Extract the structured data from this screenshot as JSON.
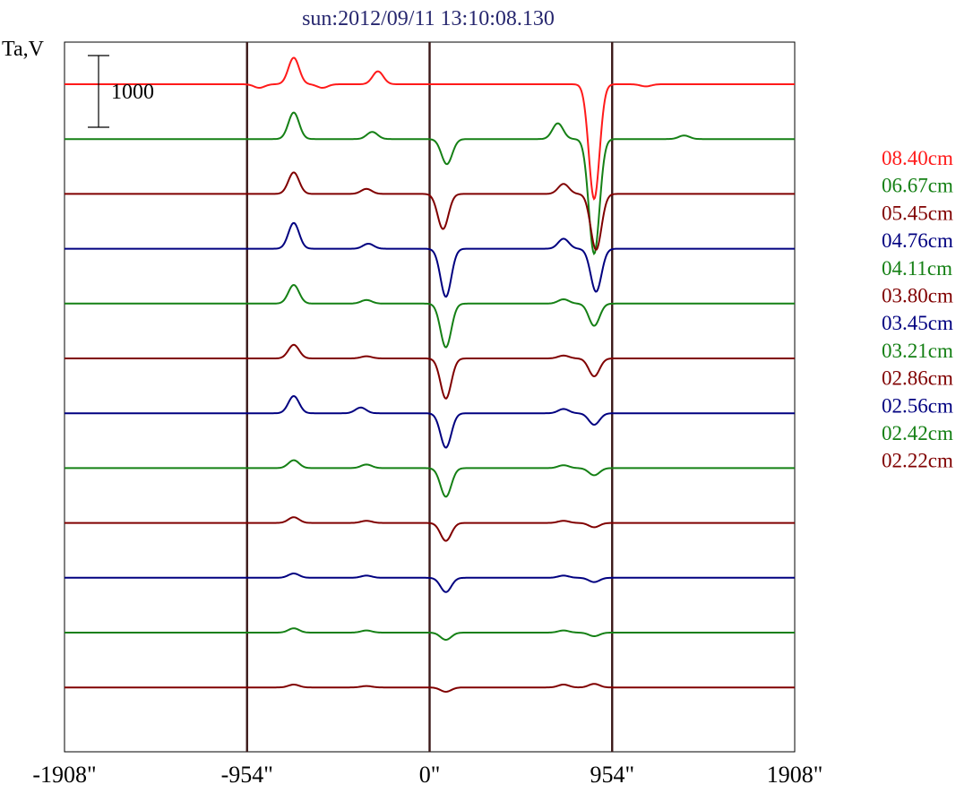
{
  "chart_data": {
    "type": "line",
    "title": "sun:2012/09/11 13:10:08.130",
    "ylabel": "Ta,V",
    "xlim": [
      -1908,
      1908
    ],
    "x_ticks": [
      -1908,
      -954,
      0,
      954,
      1908
    ],
    "x_tick_labels": [
      "-1908\"",
      "-954\"",
      "0\"",
      "954\"",
      "1908\""
    ],
    "vertical_lines": [
      -954,
      0,
      954
    ],
    "scale_bar": {
      "label": "1000",
      "value": 1000
    },
    "legend_placement": "right",
    "grid": false,
    "series": [
      {
        "name": "08.40cm",
        "color": "#ff1a1a",
        "events": [
          [
            -890,
            -50
          ],
          [
            -710,
            370
          ],
          [
            -560,
            -50
          ],
          [
            -270,
            180
          ],
          [
            860,
            -1600
          ],
          [
            1130,
            -30
          ]
        ]
      },
      {
        "name": "06.67cm",
        "color": "#158015",
        "events": [
          [
            -710,
            370
          ],
          [
            -300,
            100
          ],
          [
            90,
            -350
          ],
          [
            670,
            220
          ],
          [
            860,
            -1600
          ],
          [
            1330,
            50
          ]
        ]
      },
      {
        "name": "05.45cm",
        "color": "#800000",
        "events": [
          [
            -710,
            300
          ],
          [
            -330,
            70
          ],
          [
            70,
            -490
          ],
          [
            700,
            140
          ],
          [
            870,
            -780
          ]
        ]
      },
      {
        "name": "04.76cm",
        "color": "#000080",
        "events": [
          [
            -710,
            360
          ],
          [
            -320,
            70
          ],
          [
            85,
            -670
          ],
          [
            700,
            140
          ],
          [
            870,
            -600
          ]
        ]
      },
      {
        "name": "04.11cm",
        "color": "#158015",
        "events": [
          [
            -710,
            260
          ],
          [
            -330,
            50
          ],
          [
            85,
            -610
          ],
          [
            700,
            60
          ],
          [
            860,
            -310
          ]
        ]
      },
      {
        "name": "03.80cm",
        "color": "#800000",
        "events": [
          [
            -710,
            190
          ],
          [
            -330,
            30
          ],
          [
            85,
            -560
          ],
          [
            700,
            40
          ],
          [
            860,
            -250
          ]
        ]
      },
      {
        "name": "03.45cm",
        "color": "#000080",
        "events": [
          [
            -710,
            240
          ],
          [
            -360,
            80
          ],
          [
            85,
            -480
          ],
          [
            700,
            60
          ],
          [
            860,
            -160
          ]
        ]
      },
      {
        "name": "03.21cm",
        "color": "#158015",
        "events": [
          [
            -710,
            110
          ],
          [
            -330,
            50
          ],
          [
            85,
            -400
          ],
          [
            700,
            40
          ],
          [
            860,
            -100
          ]
        ]
      },
      {
        "name": "02.86cm",
        "color": "#800000",
        "events": [
          [
            -710,
            80
          ],
          [
            -330,
            30
          ],
          [
            85,
            -250
          ],
          [
            700,
            30
          ],
          [
            860,
            -60
          ]
        ]
      },
      {
        "name": "02.56cm",
        "color": "#000080",
        "events": [
          [
            -710,
            60
          ],
          [
            -330,
            30
          ],
          [
            85,
            -200
          ],
          [
            700,
            30
          ],
          [
            860,
            -60
          ]
        ]
      },
      {
        "name": "02.42cm",
        "color": "#158015",
        "events": [
          [
            -710,
            60
          ],
          [
            -330,
            30
          ],
          [
            85,
            -100
          ],
          [
            700,
            30
          ],
          [
            860,
            -50
          ]
        ]
      },
      {
        "name": "02.22cm",
        "color": "#800000",
        "events": [
          [
            -710,
            40
          ],
          [
            -330,
            20
          ],
          [
            85,
            -60
          ],
          [
            700,
            40
          ],
          [
            860,
            50
          ]
        ]
      }
    ]
  }
}
